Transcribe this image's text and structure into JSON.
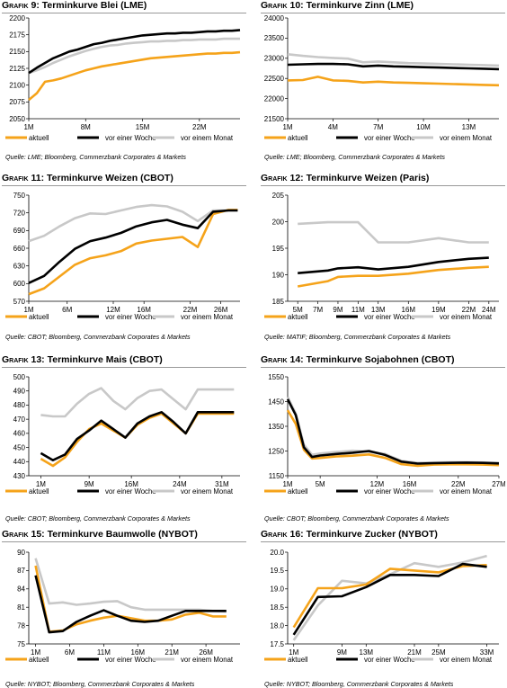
{
  "colors": {
    "aktuell": "#f5a31a",
    "woche": "#000000",
    "monat": "#c8c8c8"
  },
  "legend_labels": {
    "aktuell": "aktuell",
    "woche": "vor einer Woche",
    "monat": "vor einem Monat"
  },
  "panels": [
    {
      "title_prefix": "Grafik",
      "title_num": "9:",
      "title_text": "Terminkurve Blei (LME)",
      "source": "Quelle: LME; Bloomberg, Commerzbank Corporates & Markets",
      "chart_data": {
        "type": "line",
        "x": [
          1,
          2,
          3,
          4,
          5,
          6,
          7,
          8,
          9,
          10,
          11,
          12,
          13,
          14,
          15,
          16,
          17,
          18,
          19,
          20,
          21,
          22,
          23,
          24,
          25,
          26,
          27
        ],
        "xticks": [
          1,
          8,
          15,
          22
        ],
        "xtick_labels": [
          "1M",
          "8M",
          "15M",
          "22M"
        ],
        "xlim": [
          1,
          27
        ],
        "ylim": [
          2050,
          2200
        ],
        "yticks": [
          2050,
          2075,
          2100,
          2125,
          2150,
          2175,
          2200
        ],
        "ytick_labels": [
          "2050",
          "2075",
          "2100",
          "2125",
          "2150",
          "2175",
          "2200"
        ],
        "series": [
          {
            "key": "aktuell",
            "values": [
              2078,
              2088,
              2105,
              2107,
              2110,
              2114,
              2118,
              2122,
              2125,
              2128,
              2130,
              2132,
              2134,
              2136,
              2138,
              2140,
              2141,
              2142,
              2143,
              2144,
              2145,
              2146,
              2147,
              2147,
              2148,
              2148,
              2149
            ]
          },
          {
            "key": "woche",
            "values": [
              2118,
              2126,
              2133,
              2140,
              2145,
              2150,
              2153,
              2157,
              2161,
              2163,
              2166,
              2168,
              2170,
              2172,
              2174,
              2175,
              2176,
              2177,
              2177,
              2178,
              2178,
              2179,
              2180,
              2180,
              2181,
              2181,
              2182
            ]
          },
          {
            "key": "monat",
            "values": [
              2118,
              2122,
              2127,
              2133,
              2138,
              2143,
              2147,
              2151,
              2154,
              2157,
              2159,
              2160,
              2162,
              2163,
              2164,
              2165,
              2165,
              2166,
              2166,
              2167,
              2167,
              2168,
              2168,
              2168,
              2169,
              2169,
              2169
            ]
          }
        ]
      }
    },
    {
      "title_prefix": "Grafik",
      "title_num": "10:",
      "title_text": "Terminkurve Zinn (LME)",
      "source": "Quelle: LME; Bloomberg, Commerzbank Corporates & Markets",
      "chart_data": {
        "type": "line",
        "x": [
          1,
          2,
          3,
          4,
          5,
          6,
          7,
          8,
          9,
          10,
          11,
          12,
          13,
          14,
          15
        ],
        "xticks": [
          1,
          4,
          7,
          10,
          13
        ],
        "xtick_labels": [
          "1M",
          "4M",
          "7M",
          "10M",
          "13M"
        ],
        "xlim": [
          1,
          15
        ],
        "ylim": [
          21500,
          24000
        ],
        "yticks": [
          21500,
          22000,
          22500,
          23000,
          23500,
          24000
        ],
        "ytick_labels": [
          "21500",
          "22000",
          "22500",
          "23000",
          "23500",
          "24000"
        ],
        "series": [
          {
            "key": "aktuell",
            "values": [
              22450,
              22460,
              22540,
              22450,
              22440,
              22400,
              22420,
              22400,
              22390,
              22380,
              22370,
              22360,
              22350,
              22340,
              22330
            ]
          },
          {
            "key": "woche",
            "values": [
              22840,
              22850,
              22860,
              22860,
              22850,
              22800,
              22820,
              22800,
              22790,
              22780,
              22770,
              22760,
              22750,
              22740,
              22730
            ]
          },
          {
            "key": "monat",
            "values": [
              23100,
              23060,
              23030,
              23010,
              22990,
              22900,
              22920,
              22900,
              22880,
              22870,
              22860,
              22850,
              22840,
              22830,
              22820
            ]
          }
        ]
      }
    },
    {
      "title_prefix": "Grafik",
      "title_num": "11:",
      "title_text": "Terminkurve Weizen (CBOT)",
      "source": "Quelle: CBOT; Bloomberg, Commerzbank Corporates & Markets",
      "chart_data": {
        "type": "line",
        "x": [
          1,
          3,
          5,
          7,
          9,
          11,
          13,
          15,
          17,
          19,
          21,
          23,
          25,
          27,
          28.2
        ],
        "xticks": [
          1,
          6,
          12,
          16,
          22,
          26
        ],
        "xtick_labels": [
          "1M",
          "6M",
          "12M",
          "16M",
          "22M",
          "26M"
        ],
        "xlim": [
          1,
          28.5
        ],
        "ylim": [
          570,
          750
        ],
        "yticks": [
          570,
          600,
          630,
          660,
          690,
          720,
          750
        ],
        "ytick_labels": [
          "570",
          "600",
          "630",
          "660",
          "690",
          "720",
          "750"
        ],
        "series": [
          {
            "key": "aktuell",
            "values": [
              582,
              592,
              612,
              632,
              643,
              648,
              655,
              668,
              673,
              676,
              679,
              662,
              718,
              725,
              725
            ]
          },
          {
            "key": "woche",
            "values": [
              601,
              613,
              637,
              659,
              672,
              678,
              686,
              697,
              704,
              708,
              700,
              694,
              722,
              724,
              724
            ]
          },
          {
            "key": "monat",
            "values": [
              672,
              681,
              697,
              711,
              719,
              718,
              724,
              730,
              733,
              731,
              722,
              706,
              724,
              724,
              724
            ]
          }
        ]
      }
    },
    {
      "title_prefix": "Grafik",
      "title_num": "12:",
      "title_text": "Terminkurve Weizen (Paris)",
      "source": "Quelle: MATIF; Bloomberg, Commerzbank Corporates & Markets",
      "chart_data": {
        "type": "line",
        "x": [
          5,
          8,
          9,
          11,
          13,
          16,
          19,
          22,
          24
        ],
        "xticks": [
          5,
          7,
          9,
          11,
          13,
          16,
          19,
          22,
          24
        ],
        "xtick_labels": [
          "5M",
          "7M",
          "9M",
          "11M",
          "13M",
          "16M",
          "19M",
          "22M",
          "24M"
        ],
        "xlim": [
          4,
          25
        ],
        "ylim": [
          185,
          205
        ],
        "yticks": [
          185,
          190,
          195,
          200,
          205
        ],
        "ytick_labels": [
          "185",
          "190",
          "195",
          "200",
          "205"
        ],
        "series": [
          {
            "key": "aktuell",
            "values": [
              187.8,
              188.8,
              189.6,
              189.8,
              189.8,
              190.2,
              190.9,
              191.3,
              191.5
            ]
          },
          {
            "key": "woche",
            "values": [
              190.3,
              190.8,
              191.2,
              191.4,
              191.0,
              191.5,
              192.4,
              193.0,
              193.2
            ]
          },
          {
            "key": "monat",
            "values": [
              199.6,
              199.9,
              199.9,
              199.9,
              196.1,
              196.1,
              196.9,
              196.1,
              196.1
            ]
          }
        ]
      }
    },
    {
      "title_prefix": "Grafik",
      "title_num": "13:",
      "title_text": "Terminkurve Mais (CBOT)",
      "source": "Quelle: CBOT; Bloomberg, Commerzbank Corporates & Markets",
      "chart_data": {
        "type": "line",
        "x": [
          1,
          3,
          5,
          7,
          9,
          11,
          13,
          15,
          17,
          19,
          21,
          23,
          25,
          27,
          29,
          31,
          33
        ],
        "xticks": [
          1,
          9,
          16,
          24,
          31
        ],
        "xtick_labels": [
          "1M",
          "9M",
          "16M",
          "24M",
          "31M"
        ],
        "xlim": [
          -1,
          34
        ],
        "ylim": [
          430,
          500
        ],
        "yticks": [
          430,
          440,
          450,
          460,
          470,
          480,
          490,
          500
        ],
        "ytick_labels": [
          "430",
          "440",
          "450",
          "460",
          "470",
          "480",
          "490",
          "500"
        ],
        "series": [
          {
            "key": "aktuell",
            "values": [
              442,
              437,
              443,
              454,
              463,
              467,
              462,
              457,
              466,
              471,
              474,
              467,
              460,
              474,
              474,
              474,
              474
            ]
          },
          {
            "key": "woche",
            "values": [
              446,
              441,
              445,
              456,
              462,
              469,
              463,
              457,
              467,
              472,
              475,
              468,
              460,
              475,
              475,
              475,
              475
            ]
          },
          {
            "key": "monat",
            "values": [
              473,
              472,
              472,
              481,
              488,
              492,
              483,
              477,
              485,
              490,
              491,
              484,
              477,
              491,
              491,
              491,
              491
            ]
          }
        ]
      }
    },
    {
      "title_prefix": "Grafik",
      "title_num": "14:",
      "title_text": "Terminkurve Sojabohnen (CBOT)",
      "source": "Quelle: CBOT; Bloomberg, Commerzbank Corporates & Markets",
      "chart_data": {
        "type": "line",
        "x": [
          1,
          2,
          3,
          4,
          5,
          7,
          9,
          11,
          13,
          15,
          17,
          19,
          21,
          23,
          25,
          27
        ],
        "xticks": [
          1,
          5,
          12,
          16,
          22,
          27
        ],
        "xtick_labels": [
          "1M",
          "5M",
          "12M",
          "16M",
          "22M",
          "27M"
        ],
        "xlim": [
          1,
          27
        ],
        "ylim": [
          1150,
          1550
        ],
        "yticks": [
          1150,
          1250,
          1350,
          1450,
          1550
        ],
        "ytick_labels": [
          "1150",
          "1250",
          "1350",
          "1450",
          "1550"
        ],
        "series": [
          {
            "key": "aktuell",
            "values": [
              1415,
              1360,
              1255,
              1220,
              1222,
              1228,
              1231,
              1236,
              1222,
              1197,
              1190,
              1195,
              1196,
              1196,
              1195,
              1193
            ]
          },
          {
            "key": "woche",
            "values": [
              1460,
              1395,
              1265,
              1226,
              1232,
              1238,
              1243,
              1250,
              1234,
              1207,
              1199,
              1201,
              1202,
              1203,
              1202,
              1200
            ]
          },
          {
            "key": "monat",
            "values": [
              1468,
              1402,
              1275,
              1235,
              1240,
              1246,
              1251,
              1247,
              1238,
              1210,
              1202,
              1204,
              1205,
              1205,
              1204,
              1202
            ]
          }
        ]
      }
    },
    {
      "title_prefix": "Grafik",
      "title_num": "15:",
      "title_text": "Terminkurve Baumwolle (NYBOT)",
      "source": "Quelle: NYBOT; Bloomberg, Commerzbank Corporates & Markets",
      "chart_data": {
        "type": "line",
        "x": [
          1,
          3,
          5,
          7,
          9,
          11,
          13,
          15,
          17,
          19,
          21,
          23,
          25,
          27,
          29
        ],
        "xticks": [
          1,
          6,
          11,
          16,
          21,
          26
        ],
        "xtick_labels": [
          "1M",
          "6M",
          "11M",
          "16M",
          "21M",
          "26M"
        ],
        "xlim": [
          0,
          31
        ],
        "ylim": [
          75,
          90
        ],
        "yticks": [
          75,
          78,
          81,
          84,
          87,
          90
        ],
        "ytick_labels": [
          "75",
          "78",
          "81",
          "84",
          "87",
          "90"
        ],
        "series": [
          {
            "key": "aktuell",
            "values": [
              87.8,
              77.0,
              77.2,
              78.2,
              78.8,
              79.3,
              79.6,
              79.2,
              78.8,
              78.8,
              79.0,
              79.8,
              80.1,
              79.5,
              79.5
            ]
          },
          {
            "key": "woche",
            "values": [
              86.2,
              76.9,
              77.1,
              78.6,
              79.6,
              80.5,
              79.6,
              78.8,
              78.6,
              78.8,
              79.6,
              80.4,
              80.4,
              80.4,
              80.4
            ]
          },
          {
            "key": "monat",
            "values": [
              89.0,
              81.6,
              81.8,
              81.4,
              81.6,
              81.9,
              82.0,
              81.0,
              80.6,
              80.6,
              80.6,
              80.6,
              80.6,
              80.4,
              80.3
            ]
          }
        ]
      }
    },
    {
      "title_prefix": "Grafik",
      "title_num": "16:",
      "title_text": "Terminkurve Zucker (NYBOT)",
      "source": "Quelle: NYBOT; Bloomberg, Commerzbank Corporates & Markets",
      "chart_data": {
        "type": "line",
        "x": [
          1,
          5,
          9,
          13,
          17,
          21,
          25,
          29,
          33
        ],
        "xticks": [
          1,
          9,
          13,
          21,
          25,
          33
        ],
        "xtick_labels": [
          "1M",
          "9M",
          "13M",
          "21M",
          "25M",
          "33M"
        ],
        "xlim": [
          0,
          35
        ],
        "ylim": [
          17.5,
          20.0
        ],
        "yticks": [
          17.5,
          18.0,
          18.5,
          19.0,
          19.5,
          20.0
        ],
        "ytick_labels": [
          "17.5",
          "18.0",
          "18.5",
          "19.0",
          "19.5",
          "20.0"
        ],
        "series": [
          {
            "key": "aktuell",
            "values": [
              17.95,
              19.02,
              19.02,
              19.12,
              19.55,
              19.5,
              19.45,
              19.62,
              19.65
            ]
          },
          {
            "key": "woche",
            "values": [
              17.75,
              18.78,
              18.8,
              19.05,
              19.38,
              19.38,
              19.35,
              19.68,
              19.6
            ]
          },
          {
            "key": "monat",
            "values": [
              17.6,
              18.55,
              19.22,
              19.15,
              19.4,
              19.7,
              19.6,
              19.72,
              19.9
            ]
          }
        ]
      }
    }
  ]
}
